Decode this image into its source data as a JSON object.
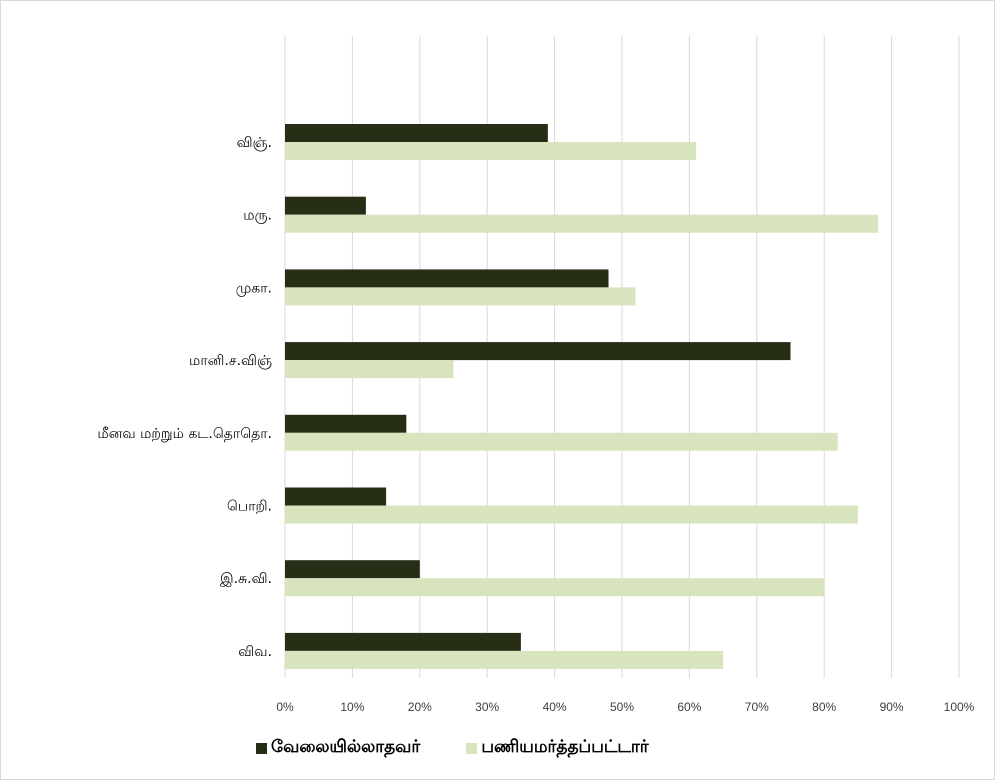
{
  "chart_data": {
    "type": "bar",
    "orientation": "horizontal",
    "title": "",
    "xlabel": "",
    "ylabel": "",
    "xlim": [
      0,
      100
    ],
    "x_ticks": [
      "0%",
      "10%",
      "20%",
      "30%",
      "40%",
      "50%",
      "60%",
      "70%",
      "80%",
      "90%",
      "100%"
    ],
    "grid": "vertical",
    "legend_position": "bottom",
    "categories": [
      "விஞ்.",
      "மரு.",
      "முகா.",
      "மானி.ச.விஞ்",
      "மீனவ மற்றும் கட.தொதொ.",
      "பொறி.",
      "இ.சு.வி.",
      "விவ."
    ],
    "series": [
      {
        "name": "வேலையில்லாதவர்",
        "color": "#262e16",
        "values": [
          39,
          12,
          48,
          75,
          18,
          15,
          20,
          35
        ]
      },
      {
        "name": "பணியமர்த்தப்பட்டார்",
        "color": "#d7e4bd",
        "values": [
          61,
          88,
          52,
          25,
          82,
          85,
          80,
          65
        ]
      }
    ]
  }
}
